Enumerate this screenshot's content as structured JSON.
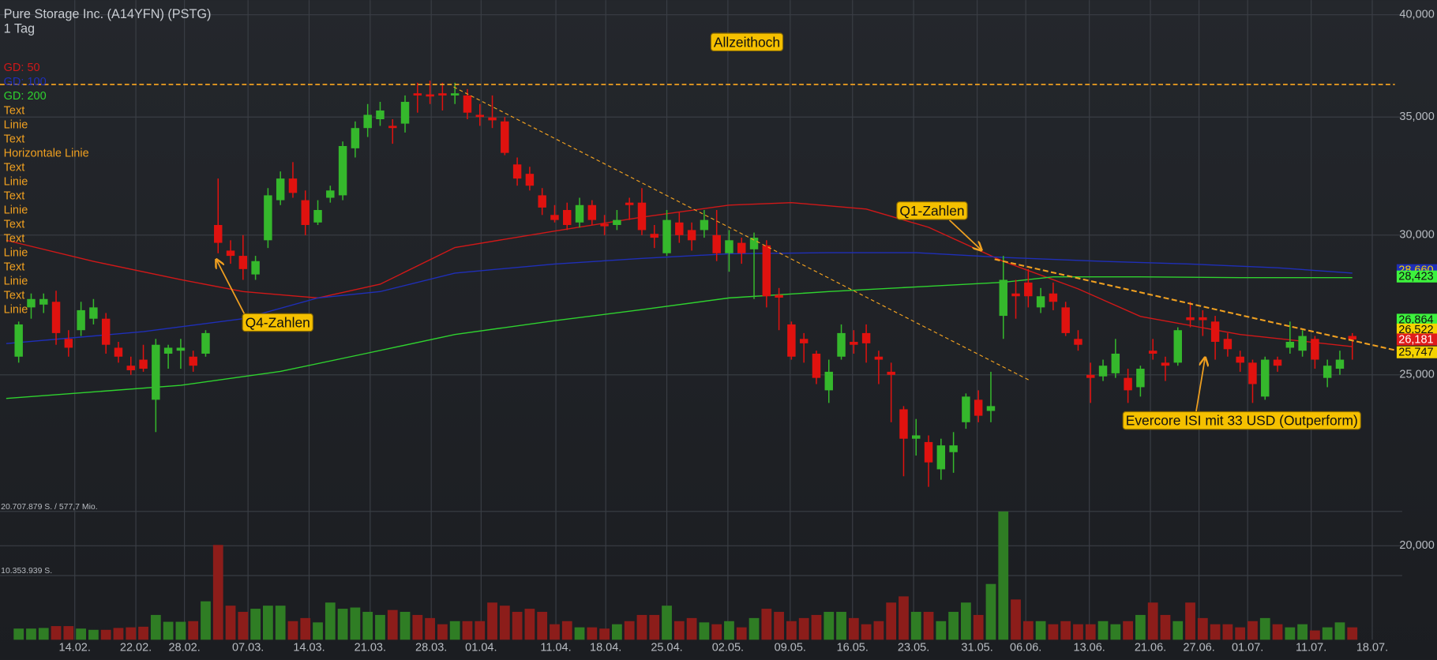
{
  "chart_data": {
    "type": "candlestick",
    "title": "Pure Storage Inc. (A14YFN) (PSTG)",
    "subtitle": "1 Tag",
    "log_scale": true,
    "grid": true,
    "up_color": "#35b82c",
    "down_color": "#e0120f",
    "xlim": [
      -1.5,
      111
    ],
    "xticks": [
      {
        "value": 4.5,
        "label": "14.02."
      },
      {
        "value": 9.4,
        "label": "22.02."
      },
      {
        "value": 13.3,
        "label": "28.02."
      },
      {
        "value": 18.4,
        "label": "07.03."
      },
      {
        "value": 23.3,
        "label": "14.03."
      },
      {
        "value": 28.2,
        "label": "21.03."
      },
      {
        "value": 33.1,
        "label": "28.03."
      },
      {
        "value": 37.1,
        "label": "01.04."
      },
      {
        "value": 43.1,
        "label": "11.04."
      },
      {
        "value": 47.1,
        "label": "18.04."
      },
      {
        "value": 52.0,
        "label": "25.04."
      },
      {
        "value": 56.9,
        "label": "02.05."
      },
      {
        "value": 61.9,
        "label": "09.05."
      },
      {
        "value": 66.9,
        "label": "16.05."
      },
      {
        "value": 71.8,
        "label": "23.05."
      },
      {
        "value": 76.9,
        "label": "31.05."
      },
      {
        "value": 80.8,
        "label": "06.06."
      },
      {
        "value": 85.9,
        "label": "13.06."
      },
      {
        "value": 90.8,
        "label": "21.06."
      },
      {
        "value": 94.7,
        "label": "27.06."
      },
      {
        "value": 98.6,
        "label": "01.07."
      },
      {
        "value": 103.7,
        "label": "11.07."
      },
      {
        "value": 108.6,
        "label": "18.07."
      }
    ],
    "ylim": [
      17.65,
      40.77
    ],
    "yticks": [
      {
        "value": 40,
        "label": "40,000"
      },
      {
        "value": 35,
        "label": "35,000"
      },
      {
        "value": 30,
        "label": "30,000"
      },
      {
        "value": 25,
        "label": "25,000"
      },
      {
        "value": 20,
        "label": "20,000"
      }
    ],
    "open": [
      25.6,
      27.3,
      27.4,
      27.5,
      26.2,
      26.5,
      26.9,
      26.9,
      25.9,
      25.3,
      25.5,
      24.2,
      25.7,
      25.8,
      25.6,
      25.7,
      30.4,
      29.4,
      29.2,
      28.5,
      29.8,
      31.4,
      32.3,
      31.4,
      30.5,
      31.5,
      31.6,
      33.6,
      34.5,
      34.9,
      34.6,
      34.7,
      36.1,
      36.05,
      36.1,
      36.0,
      36.0,
      35.1,
      34.98,
      34.8,
      32.9,
      32.5,
      31.6,
      30.8,
      31.0,
      30.5,
      31.2,
      30.45,
      30.4,
      31.3,
      31.3,
      30.05,
      29.3,
      30.5,
      30.2,
      30.2,
      30.0,
      29.3,
      29.7,
      29.45,
      29.6,
      27.75,
      26.7,
      26.2,
      25.7,
      24.5,
      25.6,
      26.1,
      26.4,
      25.6,
      25.1,
      23.9,
      23.0,
      22.9,
      22.1,
      22.6,
      23.5,
      24.2,
      23.85,
      27.0,
      27.8,
      28.2,
      27.3,
      27.8,
      27.3,
      26.2,
      25.0,
      24.95,
      25.05,
      24.9,
      24.6,
      25.8,
      25.4,
      25.4,
      26.95,
      26.95,
      26.8,
      26.2,
      25.6,
      25.4,
      24.3,
      25.5,
      25.9,
      25.8,
      26.2,
      24.9,
      25.2,
      26.3
    ],
    "high": [
      26.8,
      27.8,
      27.8,
      27.9,
      26.5,
      27.5,
      27.6,
      27.1,
      26.1,
      25.6,
      26.0,
      26.2,
      26.0,
      26.2,
      25.8,
      26.5,
      32.3,
      29.8,
      30.0,
      29.2,
      31.9,
      32.6,
      33.0,
      31.8,
      31.4,
      32.0,
      33.9,
      34.8,
      35.6,
      35.7,
      34.9,
      36.0,
      36.6,
      36.7,
      36.6,
      36.6,
      36.3,
      35.6,
      36.0,
      35.0,
      33.2,
      32.8,
      31.9,
      31.2,
      31.3,
      31.5,
      31.4,
      30.8,
      31.0,
      31.5,
      31.9,
      30.4,
      31.0,
      30.9,
      30.5,
      31.0,
      31.0,
      30.2,
      29.9,
      30.1,
      29.8,
      28.0,
      26.8,
      26.4,
      25.8,
      25.5,
      26.7,
      26.5,
      26.7,
      25.8,
      25.4,
      24.0,
      23.6,
      23.1,
      23.0,
      23.2,
      24.4,
      24.5,
      25.1,
      29.2,
      28.3,
      28.7,
      28.0,
      28.2,
      27.5,
      26.5,
      25.4,
      25.5,
      26.2,
      25.2,
      25.3,
      26.2,
      25.6,
      26.6,
      27.5,
      27.2,
      27.0,
      26.4,
      25.8,
      25.5,
      25.6,
      25.6,
      26.8,
      26.5,
      26.3,
      25.5,
      25.8,
      26.4
    ],
    "low": [
      25.4,
      26.9,
      27.1,
      26.0,
      25.6,
      26.3,
      26.7,
      25.7,
      25.4,
      25.0,
      25.1,
      23.2,
      25.2,
      25.2,
      25.1,
      25.6,
      29.3,
      28.9,
      28.3,
      28.3,
      29.5,
      31.2,
      31.5,
      30.0,
      30.4,
      31.3,
      31.4,
      33.2,
      34.1,
      34.6,
      33.8,
      34.3,
      35.2,
      35.6,
      35.3,
      35.6,
      34.9,
      34.6,
      34.5,
      33.3,
      32.0,
      31.8,
      30.8,
      30.5,
      30.2,
      30.3,
      30.4,
      30.0,
      30.2,
      30.6,
      30.0,
      29.5,
      29.2,
      29.7,
      29.4,
      29.9,
      29.0,
      28.6,
      28.9,
      27.6,
      27.3,
      26.5,
      25.5,
      25.4,
      24.7,
      24.1,
      25.5,
      25.7,
      25.4,
      24.7,
      23.5,
      21.9,
      22.5,
      21.6,
      21.8,
      22.0,
      23.3,
      23.5,
      23.5,
      26.2,
      26.9,
      27.3,
      27.1,
      27.2,
      26.3,
      25.8,
      24.1,
      24.8,
      24.9,
      24.1,
      24.3,
      25.5,
      24.8,
      25.3,
      26.6,
      26.3,
      25.5,
      25.6,
      25.1,
      24.1,
      24.2,
      25.1,
      25.7,
      25.6,
      25.2,
      24.6,
      25.0,
      25.5
    ],
    "close": [
      26.7,
      27.6,
      27.6,
      26.4,
      25.9,
      27.2,
      27.3,
      26.0,
      25.6,
      25.15,
      25.2,
      26.0,
      25.9,
      25.9,
      25.3,
      26.4,
      29.7,
      29.2,
      28.7,
      29.0,
      31.6,
      32.3,
      31.7,
      30.4,
      31.0,
      31.8,
      33.7,
      34.5,
      35.1,
      35.3,
      34.5,
      35.7,
      36.0,
      35.95,
      36.0,
      36.1,
      35.2,
      35.0,
      34.85,
      33.4,
      32.3,
      32.0,
      31.1,
      30.6,
      30.4,
      31.2,
      30.6,
      30.35,
      30.6,
      31.2,
      30.2,
      29.9,
      30.6,
      30.0,
      29.8,
      30.6,
      29.3,
      29.8,
      29.3,
      29.9,
      27.7,
      27.65,
      25.6,
      26.05,
      24.9,
      25.1,
      26.4,
      26.0,
      26.05,
      25.5,
      25.0,
      23.0,
      23.1,
      22.3,
      22.8,
      22.8,
      24.3,
      23.7,
      24.0,
      28.3,
      27.7,
      27.7,
      27.7,
      27.5,
      26.4,
      26.0,
      24.9,
      25.3,
      25.7,
      24.5,
      25.2,
      25.7,
      25.3,
      26.5,
      26.85,
      26.85,
      26.1,
      25.85,
      25.4,
      24.7,
      25.5,
      25.3,
      26.1,
      26.3,
      25.5,
      25.3,
      25.5,
      26.18
    ],
    "volume": [
      1800000,
      1800000,
      1900000,
      2200000,
      2200000,
      1800000,
      1600000,
      1600000,
      1900000,
      2000000,
      2100000,
      4000000,
      2900000,
      2900000,
      3000000,
      6200000,
      15300000,
      5500000,
      4500000,
      5000000,
      5500000,
      5500000,
      3000000,
      3500000,
      2800000,
      6000000,
      5000000,
      5200000,
      4500000,
      4000000,
      4800000,
      4500000,
      4000000,
      3500000,
      2500000,
      3000000,
      3000000,
      3000000,
      6000000,
      5500000,
      4500000,
      5000000,
      4500000,
      2500000,
      3000000,
      2000000,
      2000000,
      1800000,
      2500000,
      3000000,
      4000000,
      4000000,
      5500000,
      3000000,
      3500000,
      2800000,
      2500000,
      3000000,
      2000000,
      3500000,
      5000000,
      4500000,
      3000000,
      3500000,
      4000000,
      4500000,
      4500000,
      3500000,
      2500000,
      3000000,
      6000000,
      7000000,
      4500000,
      4500000,
      3000000,
      4500000,
      6000000,
      4000000,
      9000000,
      20700000,
      6500000,
      3000000,
      3000000,
      2500000,
      3000000,
      2500000,
      2500000,
      3000000,
      2500000,
      3000000,
      4000000,
      6000000,
      4000000,
      3000000,
      6000000,
      3500000,
      2500000,
      2500000,
      2000000,
      3000000,
      3500000,
      2500000,
      2000000,
      2500000,
      1500000,
      2000000,
      2800000,
      2000000
    ],
    "vlim": [
      0,
      20707879
    ],
    "volume_ticks": [
      {
        "value": 20707879,
        "label": "20.707.879 S. / 577,7 Mio."
      },
      {
        "value": 10353939,
        "label": "10.353.939 S."
      }
    ],
    "series": [
      {
        "name": "GD: 50",
        "color": "#d01818",
        "x": [
          -1,
          6,
          13,
          18,
          24,
          29,
          35,
          43,
          50,
          57,
          62,
          68,
          73,
          79,
          85,
          90,
          98,
          107
        ],
        "values": [
          29.8,
          28.99,
          28.31,
          27.87,
          27.64,
          28.14,
          29.52,
          30.16,
          30.71,
          31.2,
          31.3,
          31.04,
          30.31,
          28.99,
          27.97,
          26.98,
          26.35,
          25.94
        ]
      },
      {
        "name": "GD: 100",
        "color": "#1f2fb8",
        "x": [
          -1,
          10,
          18,
          24,
          29,
          35,
          43,
          50,
          57,
          65,
          72,
          79,
          87,
          94,
          101,
          107
        ],
        "values": [
          26.04,
          26.45,
          26.9,
          27.64,
          27.87,
          28.55,
          28.89,
          29.1,
          29.28,
          29.32,
          29.32,
          29.14,
          28.99,
          28.89,
          28.75,
          28.55
        ]
      },
      {
        "name": "GD: 200",
        "color": "#2fd22f",
        "x": [
          -1,
          13,
          21,
          28,
          35,
          43,
          50,
          57,
          65,
          72,
          79,
          83,
          90,
          98,
          107
        ],
        "values": [
          24.24,
          24.66,
          25.11,
          25.72,
          26.35,
          26.83,
          27.22,
          27.64,
          27.87,
          28.04,
          28.21,
          28.41,
          28.41,
          28.38,
          28.38
        ]
      }
    ],
    "horizontal_line": 36.52,
    "trend_lines": [
      {
        "x": [
          34.9,
          81.2
        ],
        "values": [
          36.4,
          24.8
        ]
      },
      {
        "x": [
          78.3,
          110.4
        ],
        "values": [
          29.07,
          25.82
        ]
      }
    ],
    "drawings_color": "#f0a020",
    "drawings": [
      "Text",
      "Linie",
      "Text",
      "Horizontale Linie",
      "Text",
      "Linie",
      "Text",
      "Linie",
      "Text",
      "Text",
      "Linie",
      "Text",
      "Linie",
      "Text",
      "Linie"
    ],
    "price_markers": [
      {
        "value": 28.66,
        "label": "28,660",
        "color": "#1f2fb8",
        "text_color": "#f5d300"
      },
      {
        "value": 28.423,
        "label": "28,423",
        "color": "#3df23d",
        "text_color": "#111111"
      },
      {
        "value": 26.864,
        "label": "26,864",
        "color": "#3df23d",
        "text_color": "#111111"
      },
      {
        "value": 26.522,
        "label": "26,522",
        "color": "#f5d300",
        "text_color": "#111111"
      },
      {
        "value": 26.181,
        "label": "26,181",
        "color": "#e01b1b",
        "text_color": "#ffffff"
      },
      {
        "value": 25.747,
        "label": "25,747",
        "color": "#f5d300",
        "text_color": "#111111"
      }
    ],
    "annotations": [
      "Allzeithoch",
      "Q4-Zahlen",
      "Q1-Zahlen",
      "Evercore ISI mit 33 USD (Outperform)"
    ]
  }
}
